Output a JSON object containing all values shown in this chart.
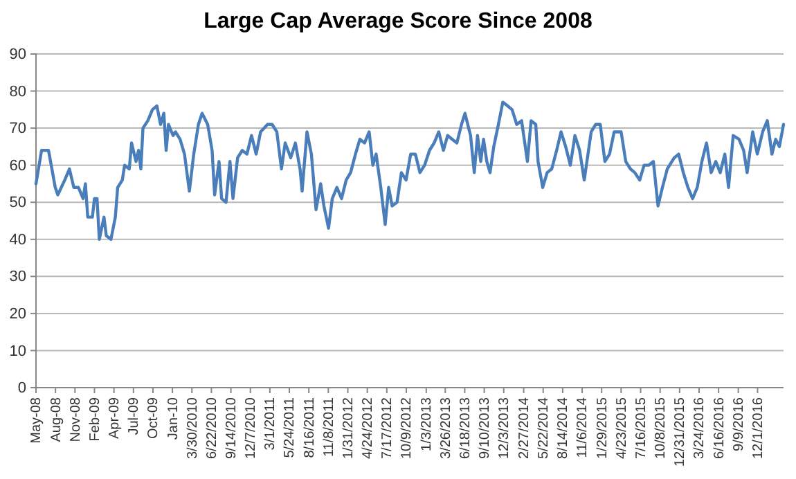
{
  "chart_data": {
    "type": "line",
    "title": "Large Cap Average Score Since 2008",
    "x": [
      "2008-05-27",
      "2008-06-20",
      "2008-07-20",
      "2008-08-18",
      "2008-08-29",
      "2008-09-28",
      "2008-10-18",
      "2008-11-06",
      "2008-11-26",
      "2008-12-16",
      "2008-12-26",
      "2009-01-05",
      "2009-01-25",
      "2009-02-03",
      "2009-02-14",
      "2009-02-24",
      "2009-03-16",
      "2009-03-26",
      "2009-04-15",
      "2009-05-04",
      "2009-05-14",
      "2009-06-03",
      "2009-06-13",
      "2009-07-03",
      "2009-07-13",
      "2009-08-01",
      "2009-08-12",
      "2009-08-22",
      "2009-08-31",
      "2009-09-21",
      "2009-10-11",
      "2009-10-30",
      "2009-11-15",
      "2009-11-29",
      "2009-12-09",
      "2009-12-19",
      "2010-01-08",
      "2010-01-18",
      "2010-02-07",
      "2010-02-26",
      "2010-03-19",
      "2010-04-07",
      "2010-04-27",
      "2010-05-13",
      "2010-06-06",
      "2010-06-25",
      "2010-07-06",
      "2010-07-25",
      "2010-08-05",
      "2010-08-24",
      "2010-09-10",
      "2010-09-23",
      "2010-10-13",
      "2010-11-02",
      "2010-11-22",
      "2010-12-12",
      "2011-01-01",
      "2011-01-20",
      "2011-02-19",
      "2011-03-11",
      "2011-03-31",
      "2011-04-20",
      "2011-05-06",
      "2011-05-30",
      "2011-06-19",
      "2011-07-09",
      "2011-07-18",
      "2011-08-08",
      "2011-08-27",
      "2011-09-16",
      "2011-10-06",
      "2011-10-20",
      "2011-11-09",
      "2011-11-25",
      "2011-12-15",
      "2012-01-04",
      "2012-01-24",
      "2012-02-12",
      "2012-03-04",
      "2012-03-23",
      "2012-04-12",
      "2012-05-02",
      "2012-05-18",
      "2012-06-01",
      "2012-06-21",
      "2012-07-10",
      "2012-07-25",
      "2012-08-09",
      "2012-08-30",
      "2012-09-18",
      "2012-10-08",
      "2012-10-28",
      "2012-11-17",
      "2012-12-07",
      "2012-12-27",
      "2013-01-17",
      "2013-02-06",
      "2013-02-26",
      "2013-03-18",
      "2013-04-05",
      "2013-04-25",
      "2013-05-15",
      "2013-06-04",
      "2013-06-19",
      "2013-07-13",
      "2013-07-29",
      "2013-08-12",
      "2013-08-26",
      "2013-09-07",
      "2013-09-21",
      "2013-10-05",
      "2013-10-21",
      "2013-11-10",
      "2013-11-29",
      "2013-12-20",
      "2014-01-08",
      "2014-01-28",
      "2014-02-18",
      "2014-03-15",
      "2014-03-31",
      "2014-04-20",
      "2014-04-30",
      "2014-05-20",
      "2014-06-08",
      "2014-06-28",
      "2014-07-19",
      "2014-08-07",
      "2014-08-27",
      "2014-09-16",
      "2014-10-06",
      "2014-10-26",
      "2014-11-15",
      "2014-12-15",
      "2015-01-03",
      "2015-01-23",
      "2015-02-12",
      "2015-03-04",
      "2015-03-24",
      "2015-04-23",
      "2015-05-13",
      "2015-06-02",
      "2015-06-21",
      "2015-07-12",
      "2015-07-31",
      "2015-08-20",
      "2015-09-09",
      "2015-09-29",
      "2015-10-18",
      "2015-11-08",
      "2015-12-08",
      "2015-12-27",
      "2016-01-16",
      "2016-02-05",
      "2016-02-25",
      "2016-03-16",
      "2016-04-05",
      "2016-04-25",
      "2016-05-15",
      "2016-06-04",
      "2016-06-23",
      "2016-07-13",
      "2016-07-29",
      "2016-08-18",
      "2016-09-12",
      "2016-10-02",
      "2016-10-17",
      "2016-11-10",
      "2016-11-30",
      "2016-12-23",
      "2017-01-12",
      "2017-02-01",
      "2017-02-17",
      "2017-03-05",
      "2017-03-23"
    ],
    "series": [
      {
        "color": "#4a7ebb",
        "values": [
          55,
          64,
          64,
          54,
          52,
          56,
          59,
          54,
          54,
          51,
          55,
          46,
          46,
          51,
          51,
          40,
          46,
          41,
          40,
          46,
          54,
          56,
          60,
          59,
          66,
          61,
          64,
          59,
          70,
          72,
          75,
          76,
          71,
          74,
          64,
          71,
          68,
          69,
          67,
          63,
          53,
          63,
          71,
          74,
          71,
          64,
          52,
          61,
          51,
          50,
          61,
          51,
          62,
          64,
          63,
          68,
          63,
          69,
          71,
          71,
          69,
          59,
          66,
          62,
          66,
          59,
          53,
          69,
          63,
          48,
          55,
          49,
          43,
          51,
          54,
          51,
          56,
          58,
          63,
          67,
          66,
          69,
          60,
          63,
          54,
          44,
          54,
          49,
          50,
          58,
          56,
          63,
          63,
          58,
          60,
          64,
          66,
          69,
          64,
          68,
          67,
          66,
          71,
          74,
          68,
          58,
          68,
          61,
          67,
          61,
          58,
          65,
          71,
          77,
          76,
          75,
          71,
          72,
          61,
          72,
          71,
          61,
          54,
          58,
          59,
          64,
          69,
          65,
          60,
          68,
          64,
          56,
          69,
          71,
          71,
          61,
          63,
          69,
          69,
          61,
          59,
          58,
          56,
          60,
          60,
          61,
          49,
          54,
          59,
          62,
          63,
          58,
          54,
          51,
          54,
          61,
          66,
          58,
          61,
          58,
          63,
          54,
          68,
          67,
          64,
          58,
          69,
          63,
          69,
          72,
          63,
          67,
          65,
          71
        ]
      }
    ],
    "xlim": [
      "2008-05-27",
      "2017-03-23"
    ],
    "xticks": [
      {
        "value": "2008-05-27",
        "label": "May-08"
      },
      {
        "value": "2008-08-19",
        "label": "Aug-08"
      },
      {
        "value": "2008-11-11",
        "label": "Nov-08"
      },
      {
        "value": "2009-02-03",
        "label": "Feb-09"
      },
      {
        "value": "2009-04-28",
        "label": "Apr-09"
      },
      {
        "value": "2009-07-21",
        "label": "Jul-09"
      },
      {
        "value": "2009-10-13",
        "label": "Oct-09"
      },
      {
        "value": "2010-01-05",
        "label": "Jan-10"
      },
      {
        "value": "2010-03-30",
        "label": "3/30/2010"
      },
      {
        "value": "2010-06-22",
        "label": "6/22/2010"
      },
      {
        "value": "2010-09-14",
        "label": "9/14/2010"
      },
      {
        "value": "2010-12-07",
        "label": "12/7/2010"
      },
      {
        "value": "2011-03-01",
        "label": "3/1/2011"
      },
      {
        "value": "2011-05-24",
        "label": "5/24/2011"
      },
      {
        "value": "2011-08-16",
        "label": "8/16/2011"
      },
      {
        "value": "2011-11-08",
        "label": "11/8/2011"
      },
      {
        "value": "2012-01-31",
        "label": "1/31/2012"
      },
      {
        "value": "2012-04-24",
        "label": "4/24/2012"
      },
      {
        "value": "2012-07-17",
        "label": "7/17/2012"
      },
      {
        "value": "2012-10-09",
        "label": "10/9/2012"
      },
      {
        "value": "2013-01-03",
        "label": "1/3/2013"
      },
      {
        "value": "2013-03-26",
        "label": "3/26/2013"
      },
      {
        "value": "2013-06-18",
        "label": "6/18/2013"
      },
      {
        "value": "2013-09-10",
        "label": "9/10/2013"
      },
      {
        "value": "2013-12-03",
        "label": "12/3/2013"
      },
      {
        "value": "2014-02-27",
        "label": "2/27/2014"
      },
      {
        "value": "2014-05-22",
        "label": "5/22/2014"
      },
      {
        "value": "2014-08-14",
        "label": "8/14/2014"
      },
      {
        "value": "2014-11-06",
        "label": "11/6/2014"
      },
      {
        "value": "2015-01-29",
        "label": "1/29/2015"
      },
      {
        "value": "2015-04-23",
        "label": "4/23/2015"
      },
      {
        "value": "2015-07-16",
        "label": "7/16/2015"
      },
      {
        "value": "2015-10-08",
        "label": "10/8/2015"
      },
      {
        "value": "2015-12-31",
        "label": "12/31/2015"
      },
      {
        "value": "2016-03-24",
        "label": "3/24/2016"
      },
      {
        "value": "2016-06-16",
        "label": "6/16/2016"
      },
      {
        "value": "2016-09-09",
        "label": "9/9/2016"
      },
      {
        "value": "2016-12-01",
        "label": "12/1/2016"
      }
    ],
    "ylim": [
      0,
      90
    ],
    "yticks": [
      0,
      10,
      20,
      30,
      40,
      50,
      60,
      70,
      80,
      90
    ],
    "grid": "y",
    "marker": "none",
    "line_style": "solid"
  }
}
